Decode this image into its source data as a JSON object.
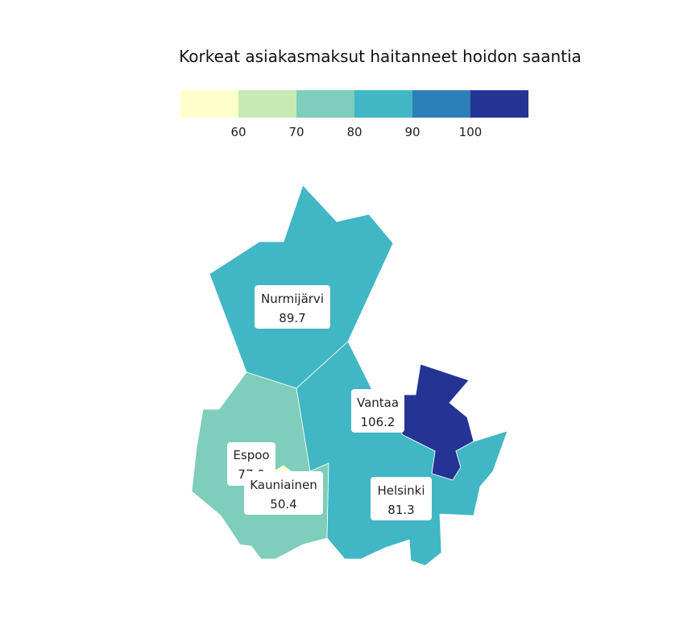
{
  "title": "Korkeat asiakasmaksut haitanneet hoidon saantia",
  "legend": {
    "ticks": [
      "60",
      "70",
      "80",
      "90",
      "100"
    ],
    "colors": [
      "#ffffcc",
      "#c7e9b4",
      "#7fcdbb",
      "#41b6c4",
      "#2c7fb8",
      "#253494"
    ]
  },
  "regions": [
    {
      "name": "Nurmijärvi",
      "value": "89.7",
      "color": "#41b6c4"
    },
    {
      "name": "Vantaa",
      "value": "106.2",
      "color": "#253494"
    },
    {
      "name": "Espoo",
      "value": "77.0",
      "color": "#7fcdbb"
    },
    {
      "name": "Helsinki",
      "value": "81.3",
      "color": "#41b6c4"
    },
    {
      "name": "Kauniainen",
      "value": "50.4",
      "color": "#ffffcc"
    }
  ]
}
